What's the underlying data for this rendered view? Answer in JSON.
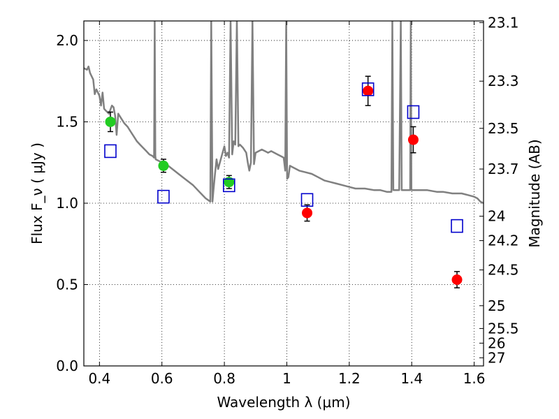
{
  "chart_data": {
    "type": "scatter",
    "title": "",
    "xlabel": "Wavelength  λ (μm)",
    "ylabel": "Flux  F_ν ( μJy )",
    "ylabel_right": "Magnitude (AB)",
    "xlim": [
      0.35,
      1.63
    ],
    "ylim": [
      0.0,
      2.12
    ],
    "grid": true,
    "x_ticks": [
      0.4,
      0.6,
      0.8,
      1.0,
      1.2,
      1.4,
      1.6
    ],
    "x_tick_labels": [
      "0.4",
      "0.6",
      "0.8",
      "1",
      "1.2",
      "1.4",
      "1.6"
    ],
    "y_ticks": [
      0.0,
      0.5,
      1.0,
      1.5,
      2.0
    ],
    "y_tick_labels": [
      "0.0",
      "0.5",
      "1.0",
      "1.5",
      "2.0"
    ],
    "right_ticks": [
      {
        "label": "23.1",
        "flux": 2.11
      },
      {
        "label": "23.3",
        "flux": 1.75
      },
      {
        "label": "23.5",
        "flux": 1.46
      },
      {
        "label": "23.7",
        "flux": 1.21
      },
      {
        "label": "24",
        "flux": 0.92
      },
      {
        "label": "24.2",
        "flux": 0.77
      },
      {
        "label": "24.5",
        "flux": 0.59
      },
      {
        "label": "25",
        "flux": 0.37
      },
      {
        "label": "25.5",
        "flux": 0.23
      },
      {
        "label": "26",
        "flux": 0.14
      },
      {
        "label": "27",
        "flux": 0.05
      }
    ],
    "model_spectrum": {
      "color": "#808080",
      "points": [
        [
          0.35,
          1.83
        ],
        [
          0.36,
          1.82
        ],
        [
          0.365,
          1.84
        ],
        [
          0.37,
          1.8
        ],
        [
          0.38,
          1.76
        ],
        [
          0.385,
          1.67
        ],
        [
          0.39,
          1.7
        ],
        [
          0.4,
          1.66
        ],
        [
          0.405,
          1.6
        ],
        [
          0.41,
          1.68
        ],
        [
          0.415,
          1.58
        ],
        [
          0.42,
          1.57
        ],
        [
          0.43,
          1.55
        ],
        [
          0.44,
          1.6
        ],
        [
          0.445,
          1.59
        ],
        [
          0.45,
          1.54
        ],
        [
          0.455,
          1.42
        ],
        [
          0.46,
          1.55
        ],
        [
          0.47,
          1.52
        ],
        [
          0.48,
          1.49
        ],
        [
          0.49,
          1.47
        ],
        [
          0.5,
          1.44
        ],
        [
          0.51,
          1.41
        ],
        [
          0.52,
          1.38
        ],
        [
          0.53,
          1.36
        ],
        [
          0.54,
          1.34
        ],
        [
          0.55,
          1.32
        ],
        [
          0.56,
          1.3
        ],
        [
          0.57,
          1.29
        ],
        [
          0.575,
          1.28
        ],
        [
          0.577,
          2.12
        ],
        [
          0.579,
          1.29
        ],
        [
          0.58,
          1.27
        ],
        [
          0.6,
          1.25
        ],
        [
          0.62,
          1.23
        ],
        [
          0.64,
          1.2
        ],
        [
          0.66,
          1.17
        ],
        [
          0.68,
          1.14
        ],
        [
          0.7,
          1.11
        ],
        [
          0.72,
          1.07
        ],
        [
          0.74,
          1.03
        ],
        [
          0.755,
          1.01
        ],
        [
          0.758,
          2.12
        ],
        [
          0.762,
          1.01
        ],
        [
          0.765,
          1.08
        ],
        [
          0.77,
          1.18
        ],
        [
          0.775,
          1.27
        ],
        [
          0.78,
          1.21
        ],
        [
          0.79,
          1.28
        ],
        [
          0.8,
          1.35
        ],
        [
          0.805,
          1.29
        ],
        [
          0.81,
          1.31
        ],
        [
          0.815,
          1.28
        ],
        [
          0.82,
          2.12
        ],
        [
          0.825,
          1.3
        ],
        [
          0.83,
          1.38
        ],
        [
          0.835,
          1.36
        ],
        [
          0.84,
          2.12
        ],
        [
          0.845,
          1.35
        ],
        [
          0.85,
          1.36
        ],
        [
          0.86,
          1.34
        ],
        [
          0.87,
          1.31
        ],
        [
          0.875,
          1.25
        ],
        [
          0.88,
          1.2
        ],
        [
          0.885,
          1.25
        ],
        [
          0.89,
          2.12
        ],
        [
          0.895,
          1.24
        ],
        [
          0.9,
          1.31
        ],
        [
          0.91,
          1.32
        ],
        [
          0.92,
          1.33
        ],
        [
          0.93,
          1.32
        ],
        [
          0.94,
          1.31
        ],
        [
          0.95,
          1.32
        ],
        [
          0.96,
          1.31
        ],
        [
          0.97,
          1.3
        ],
        [
          0.98,
          1.29
        ],
        [
          0.99,
          1.28
        ],
        [
          0.995,
          1.2
        ],
        [
          0.998,
          2.12
        ],
        [
          1.001,
          1.15
        ],
        [
          1.005,
          1.16
        ],
        [
          1.01,
          1.23
        ],
        [
          1.02,
          1.22
        ],
        [
          1.04,
          1.2
        ],
        [
          1.06,
          1.19
        ],
        [
          1.08,
          1.18
        ],
        [
          1.1,
          1.16
        ],
        [
          1.12,
          1.14
        ],
        [
          1.14,
          1.13
        ],
        [
          1.16,
          1.12
        ],
        [
          1.18,
          1.11
        ],
        [
          1.2,
          1.1
        ],
        [
          1.22,
          1.09
        ],
        [
          1.25,
          1.09
        ],
        [
          1.28,
          1.08
        ],
        [
          1.3,
          1.08
        ],
        [
          1.32,
          1.07
        ],
        [
          1.335,
          1.07
        ],
        [
          1.338,
          2.12
        ],
        [
          1.341,
          1.08
        ],
        [
          1.36,
          1.08
        ],
        [
          1.365,
          2.12
        ],
        [
          1.368,
          1.08
        ],
        [
          1.38,
          1.08
        ],
        [
          1.395,
          1.08
        ],
        [
          1.397,
          2.12
        ],
        [
          1.399,
          1.08
        ],
        [
          1.42,
          1.08
        ],
        [
          1.45,
          1.08
        ],
        [
          1.48,
          1.07
        ],
        [
          1.5,
          1.07
        ],
        [
          1.53,
          1.06
        ],
        [
          1.56,
          1.06
        ],
        [
          1.58,
          1.05
        ],
        [
          1.6,
          1.04
        ],
        [
          1.61,
          1.03
        ],
        [
          1.62,
          1.01
        ],
        [
          1.63,
          1.0
        ]
      ]
    },
    "series": [
      {
        "marker": "circle",
        "color": "#22cc22",
        "points": [
          {
            "x": 0.435,
            "y": 1.5,
            "err": 0.06
          },
          {
            "x": 0.605,
            "y": 1.23,
            "err": 0.04
          },
          {
            "x": 0.815,
            "y": 1.13,
            "err": 0.04
          }
        ]
      },
      {
        "marker": "circle",
        "color": "#ff0000",
        "points": [
          {
            "x": 1.065,
            "y": 0.94,
            "err": 0.05
          },
          {
            "x": 1.26,
            "y": 1.69,
            "err": 0.09
          },
          {
            "x": 1.405,
            "y": 1.39,
            "err": 0.08
          },
          {
            "x": 1.545,
            "y": 0.53,
            "err": 0.05
          }
        ]
      },
      {
        "marker": "open-square",
        "color": "#0000cc",
        "points": [
          {
            "x": 0.435,
            "y": 1.32
          },
          {
            "x": 0.605,
            "y": 1.04
          },
          {
            "x": 0.815,
            "y": 1.11
          },
          {
            "x": 1.065,
            "y": 1.02
          },
          {
            "x": 1.26,
            "y": 1.7
          },
          {
            "x": 1.405,
            "y": 1.56
          },
          {
            "x": 1.545,
            "y": 0.86
          }
        ]
      }
    ]
  }
}
